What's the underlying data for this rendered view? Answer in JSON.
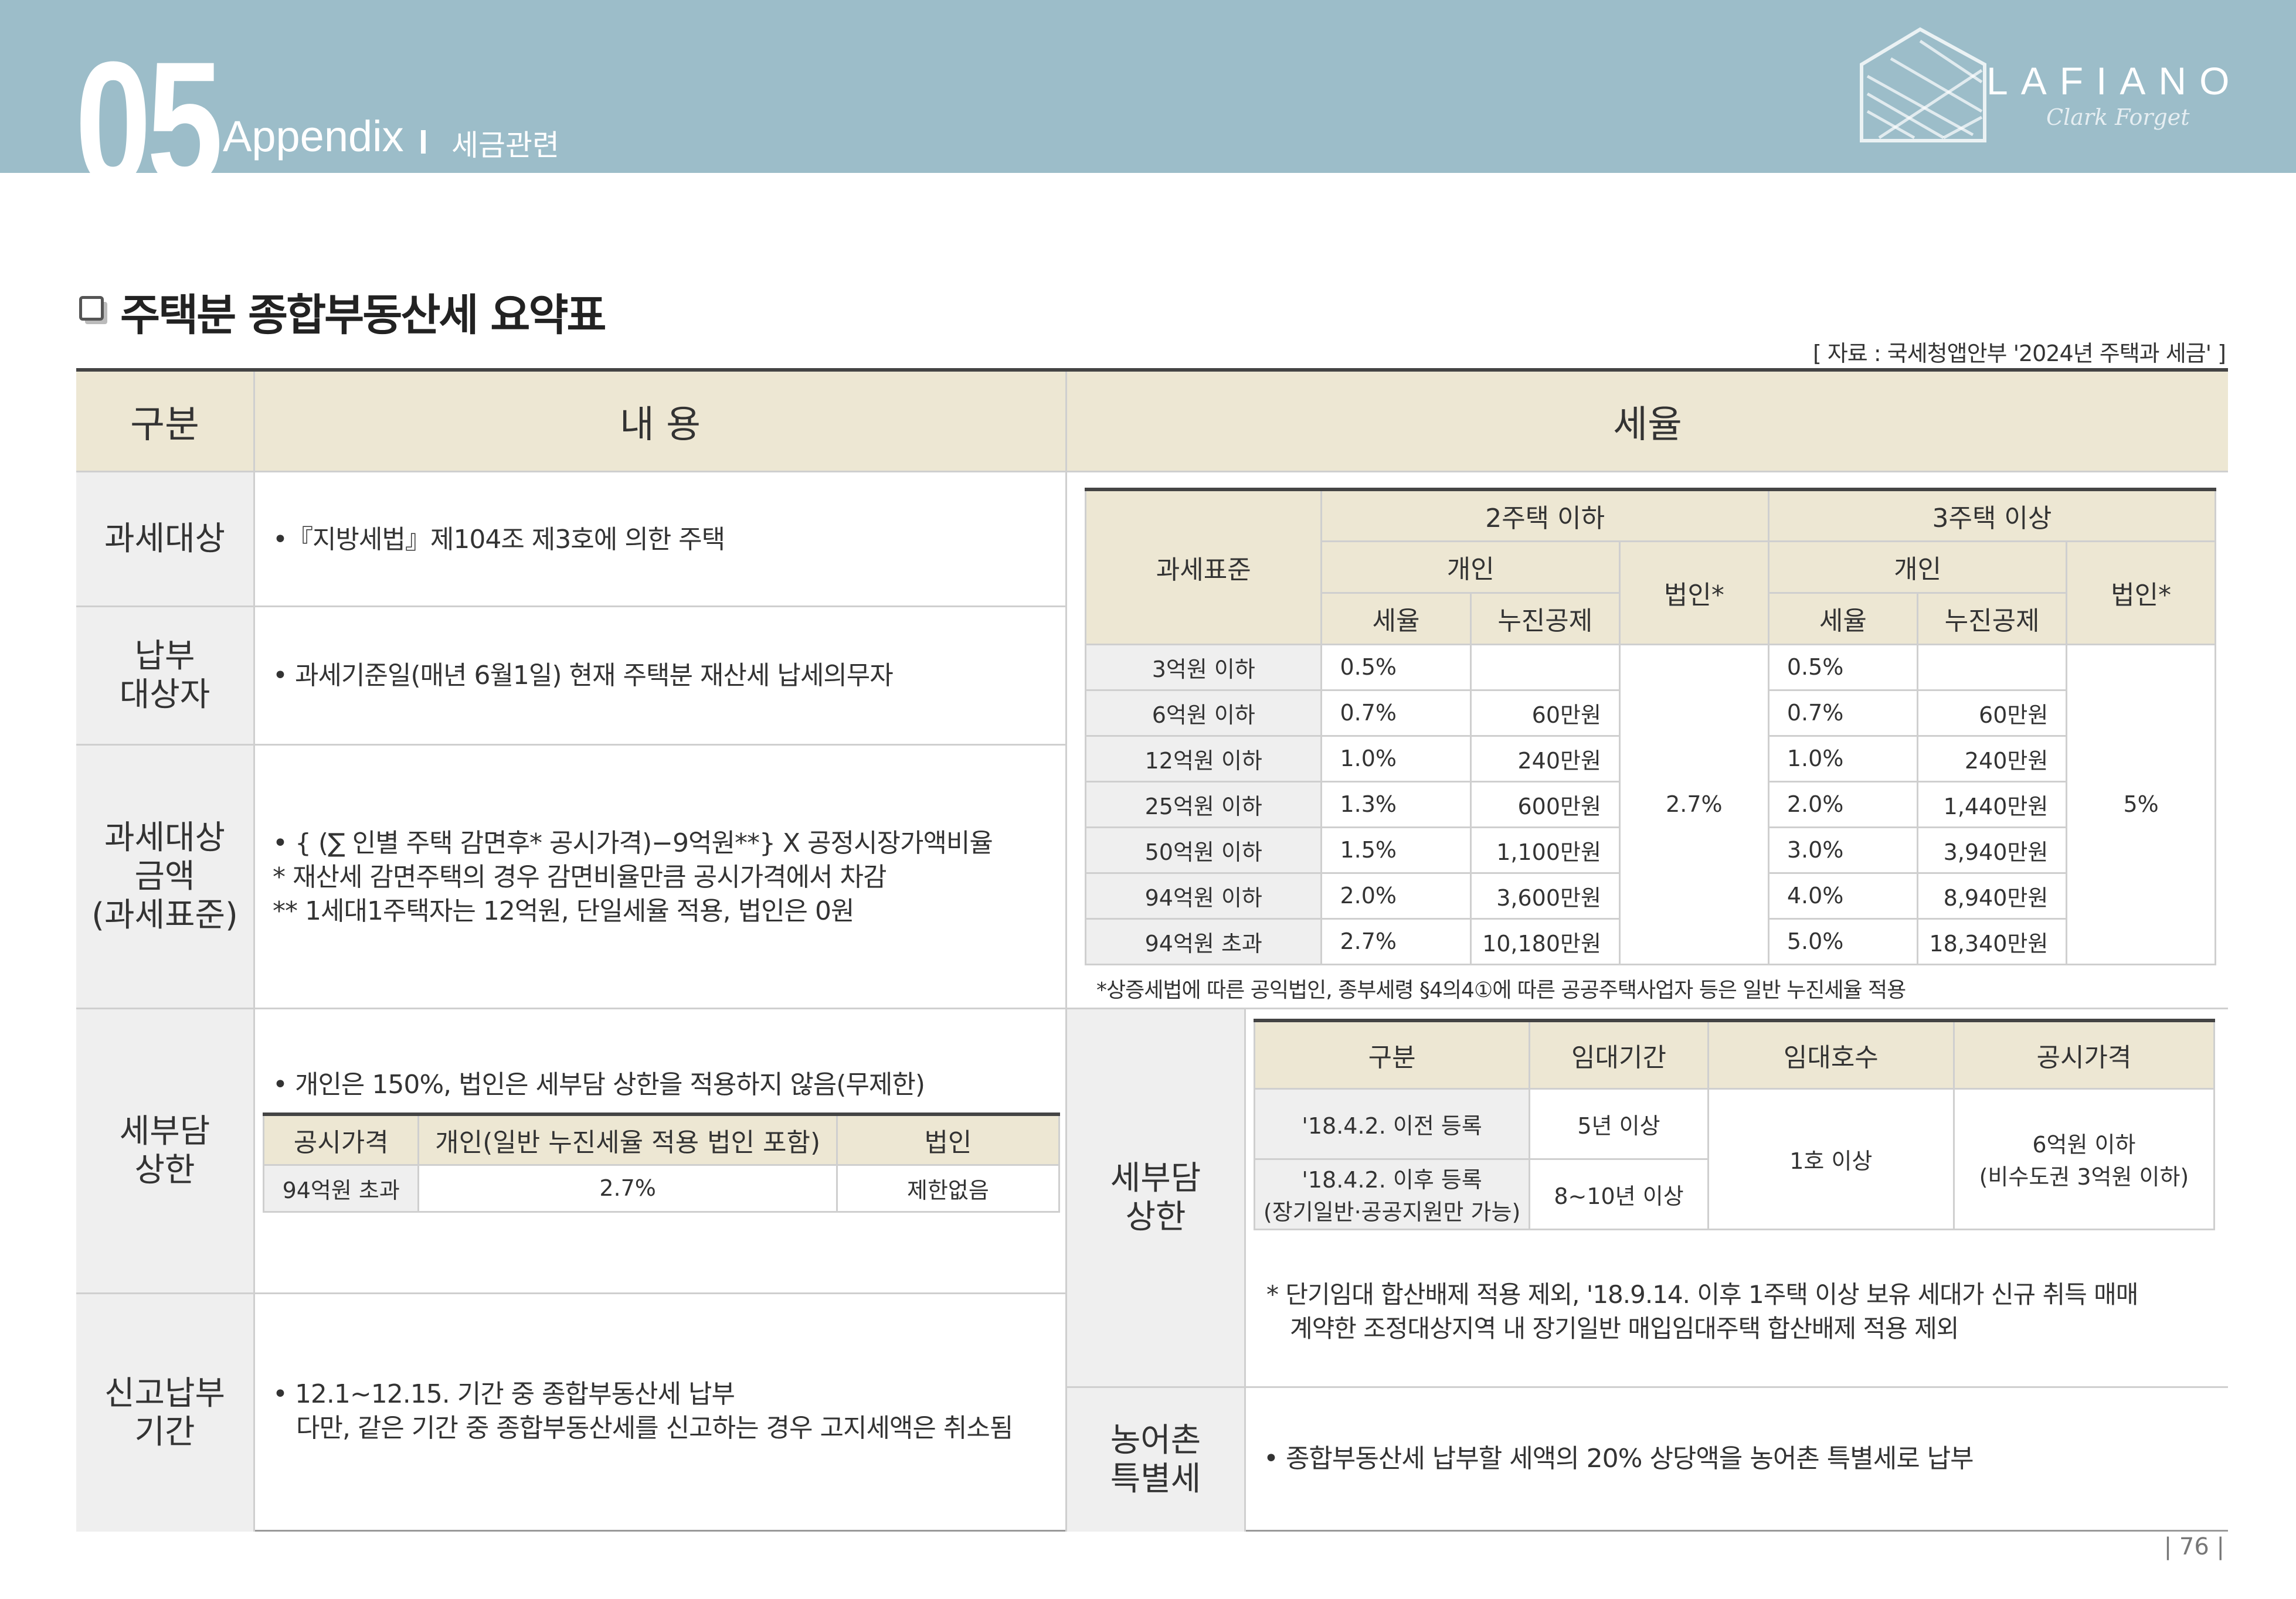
{
  "header": {
    "section_number": "05",
    "section_label": "Appendix",
    "subtitle": "세금관련",
    "logo_text": "LAFIANO",
    "logo_signature": "Clark Forget"
  },
  "title": "주택분 종합부동산세 요약표",
  "source": "[ 자료 : 국세청앱안부 '2024년 주택과 세금' ]",
  "columns": {
    "category": "구분",
    "content": "내 용",
    "rate": "세율"
  },
  "rows": {
    "tax_object": {
      "label": "과세대상",
      "text": "•『지방세법』제104조 제3호에 의한 주택"
    },
    "taxpayer": {
      "label_line1": "납부",
      "label_line2": "대상자",
      "text": "• 과세기준일(매년 6월1일) 현재 주택분 재산세 납세의무자"
    },
    "tax_base": {
      "label_line1": "과세대상",
      "label_line2": "금액",
      "label_line3": "(과세표준)",
      "line1": "• { (∑ 인별 주택 감면후* 공시가격)−9억원**} X 공정시장가액비율",
      "line2": "* 재산세 감면주택의 경우 감면비율만큼 공시가격에서 차감",
      "line3": "** 1세대1주택자는 12억원, 단일세율 적용, 법인은 0원"
    },
    "cap": {
      "label_line1": "세부담",
      "label_line2": "상한",
      "text": "• 개인은 150%, 법인은 세부담 상한을 적용하지 않음(무제한)",
      "table_headers": [
        "공시가격",
        "개인(일반 누진세율 적용 법인 포함)",
        "법인"
      ],
      "table_row": [
        "94억원 초과",
        "2.7%",
        "제한없음"
      ]
    },
    "filing": {
      "label_line1": "신고납부",
      "label_line2": "기간",
      "line1": "• 12.1~12.15. 기간 중 종합부동산세 납부",
      "line2": "다만, 같은 기간 중 종합부동산세를 신고하는 경우 고지세액은 취소됨"
    }
  },
  "rate_table": {
    "h_base": "과세표준",
    "h_two": "2주택 이하",
    "h_three": "3주택 이상",
    "h_individual": "개인",
    "h_corporate": "법인*",
    "h_rate": "세율",
    "h_deduction": "누진공제",
    "corp_two": "2.7%",
    "corp_three": "5%",
    "rows": [
      {
        "base": "3억원 이하",
        "r2": "0.5%",
        "d2": "",
        "r3": "0.5%",
        "d3": ""
      },
      {
        "base": "6억원 이하",
        "r2": "0.7%",
        "d2": "60만원",
        "r3": "0.7%",
        "d3": "60만원"
      },
      {
        "base": "12억원 이하",
        "r2": "1.0%",
        "d2": "240만원",
        "r3": "1.0%",
        "d3": "240만원"
      },
      {
        "base": "25억원 이하",
        "r2": "1.3%",
        "d2": "600만원",
        "r3": "2.0%",
        "d3": "1,440만원"
      },
      {
        "base": "50억원 이하",
        "r2": "1.5%",
        "d2": "1,100만원",
        "r3": "3.0%",
        "d3": "3,940만원"
      },
      {
        "base": "94억원 이하",
        "r2": "2.0%",
        "d2": "3,600만원",
        "r3": "4.0%",
        "d3": "8,940만원"
      },
      {
        "base": "94억원 초과",
        "r2": "2.7%",
        "d2": "10,180만원",
        "r3": "5.0%",
        "d3": "18,340만원"
      }
    ],
    "note": "*상증세법에 따른 공익법인, 종부세령 §4의4①에 따른 공공주택사업자 등은 일반 누진세율 적용"
  },
  "right_cap": {
    "label_line1": "세부담",
    "label_line2": "상한",
    "headers": [
      "구분",
      "임대기간",
      "임대호수",
      "공시가격"
    ],
    "row1_type": "'18.4.2. 이전 등록",
    "row1_period": "5년 이상",
    "row2_type_line1": "'18.4.2. 이후 등록",
    "row2_type_line2": "(장기일반·공공지원만 가능)",
    "row2_period": "8~10년 이상",
    "units": "1호 이상",
    "price_line1": "6억원 이하",
    "price_line2": "(비수도권 3억원 이하)",
    "note_line1": "* 단기임대 합산배제 적용 제외, '18.9.14. 이후 1주택 이상 보유 세대가 신규 취득 매매",
    "note_line2": "계약한 조정대상지역 내 장기일반 매입임대주택 합산배제 적용 제외"
  },
  "rural_tax": {
    "label_line1": "농어촌",
    "label_line2": "특별세",
    "text": "• 종합부동산세 납부할 세액의 20% 상당액을 농어촌 특별세로 납부"
  },
  "page_number": "| 76 |"
}
